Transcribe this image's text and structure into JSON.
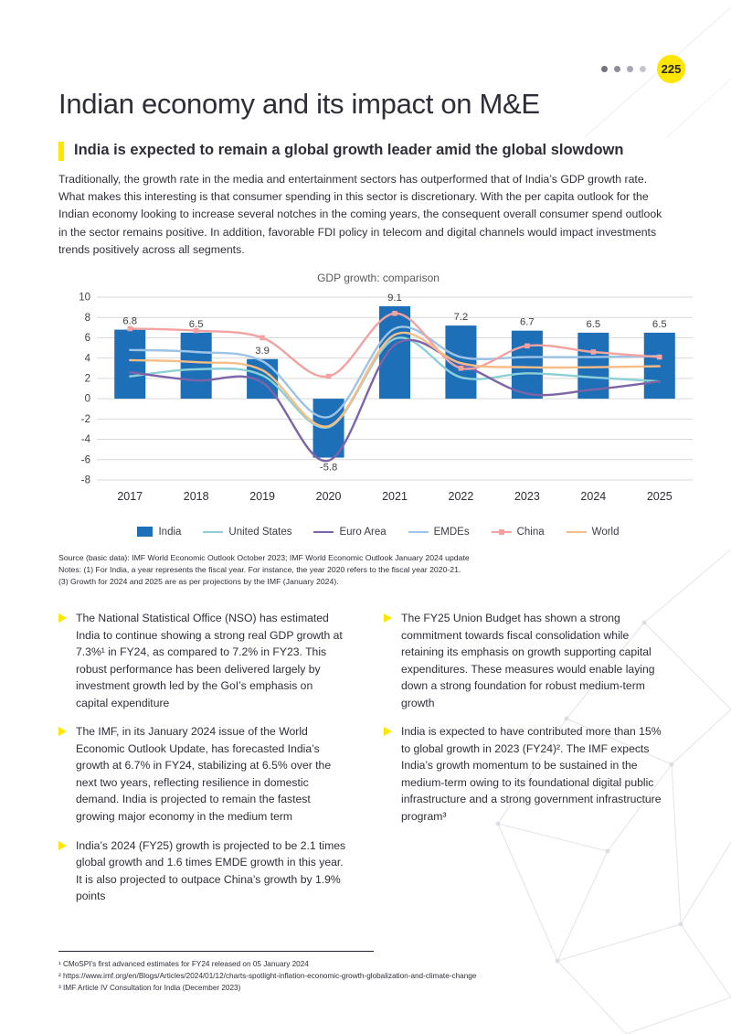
{
  "page": {
    "number": "225",
    "title": "Indian economy and its impact on M&E",
    "section_heading": "India is expected to remain a global growth leader amid the global slowdown",
    "intro": "Traditionally, the growth rate in the media and entertainment sectors has outperformed that of India’s GDP growth rate. What makes this interesting is that consumer spending in this sector is discretionary. With the per capita outlook for the Indian economy looking to increase several notches in the coming years, the consequent overall consumer spend outlook in the sector remains positive. In addition, favorable FDI policy in telecom and digital channels would impact investments trends positively across all segments."
  },
  "chart_data": {
    "type": "bar+line",
    "title": "GDP growth: comparison",
    "categories": [
      "2017",
      "2018",
      "2019",
      "2020",
      "2021",
      "2022",
      "2023",
      "2024",
      "2025"
    ],
    "series": [
      {
        "name": "India",
        "type": "bar",
        "color": "#1d70b8",
        "labels": true,
        "values": [
          6.8,
          6.5,
          3.9,
          -5.8,
          9.1,
          7.2,
          6.7,
          6.5,
          6.5
        ]
      },
      {
        "name": "United States",
        "type": "line",
        "color": "#8ccfd6",
        "values": [
          2.2,
          2.9,
          2.3,
          -2.8,
          5.9,
          2.1,
          2.5,
          2.1,
          1.7
        ]
      },
      {
        "name": "Euro Area",
        "type": "line",
        "color": "#7d64a8",
        "values": [
          2.6,
          1.8,
          1.6,
          -6.1,
          5.3,
          3.4,
          0.5,
          0.9,
          1.7
        ]
      },
      {
        "name": "EMDEs",
        "type": "line",
        "color": "#9dc3e6",
        "values": [
          4.8,
          4.6,
          3.7,
          -1.8,
          6.9,
          4.1,
          4.1,
          4.1,
          4.2
        ]
      },
      {
        "name": "China",
        "type": "line",
        "color": "#f2a3a1",
        "marker": true,
        "values": [
          6.9,
          6.7,
          6.0,
          2.2,
          8.4,
          3.0,
          5.2,
          4.6,
          4.1
        ]
      },
      {
        "name": "World",
        "type": "line",
        "color": "#f8bd86",
        "values": [
          3.8,
          3.6,
          2.8,
          -2.7,
          6.3,
          3.5,
          3.1,
          3.1,
          3.2
        ]
      }
    ],
    "xlabel": "",
    "ylabel": "",
    "ylim": [
      -8,
      10
    ],
    "ytick_step": 2,
    "grid": true,
    "legend_position": "bottom"
  },
  "source_notes": [
    "Source (basic data): IMF World Economic Outlook October 2023; IMF World Economic Outlook January 2024 update",
    "Notes: (1) For India, a year represents the fiscal year. For instance, the year 2020 refers to the fiscal year 2020-21.",
    "(3) Growth for 2024 and 2025 are as per projections by the IMF (January 2024)."
  ],
  "bullets": {
    "left": [
      "The National Statistical Office (NSO) has estimated India to continue showing a strong real GDP growth at 7.3%¹ in FY24, as compared to 7.2% in FY23. This robust performance has been delivered largely by investment growth led by the GoI’s emphasis on capital expenditure",
      "The IMF, in its January 2024 issue of the World Economic Outlook Update, has forecasted India’s growth at 6.7% in FY24, stabilizing at 6.5% over the next two years, reflecting resilience in domestic demand. India is projected to remain the fastest growing major economy in the medium term",
      "India’s 2024 (FY25) growth is projected to be 2.1 times global growth and 1.6 times EMDE growth in this year. It is also projected to outpace China’s growth by 1.9% points"
    ],
    "right": [
      "The FY25 Union Budget has shown a strong commitment towards fiscal consolidation while retaining its emphasis on growth supporting capital expenditures. These measures would enable laying down a strong foundation for robust medium-term growth",
      "India is expected to have contributed more than 15% to global growth in 2023 (FY24)². The IMF expects India’s growth momentum to be sustained in the medium-term owing to its foundational digital public infrastructure and a strong government infrastructure program³"
    ]
  },
  "footnotes": [
    "¹ CMoSPI’s first advanced estimates for FY24 released on 05 January 2024",
    "² https://www.imf.org/en/Blogs/Articles/2024/01/12/charts-spotlight-inflation-economic-growth-globalization-and-climate-change",
    "³ IMF Article IV Consultation for India (December 2023)"
  ],
  "colors": {
    "accent_yellow": "#ffe600",
    "text_dark": "#2e2e38",
    "grid": "#d9d9d9"
  }
}
